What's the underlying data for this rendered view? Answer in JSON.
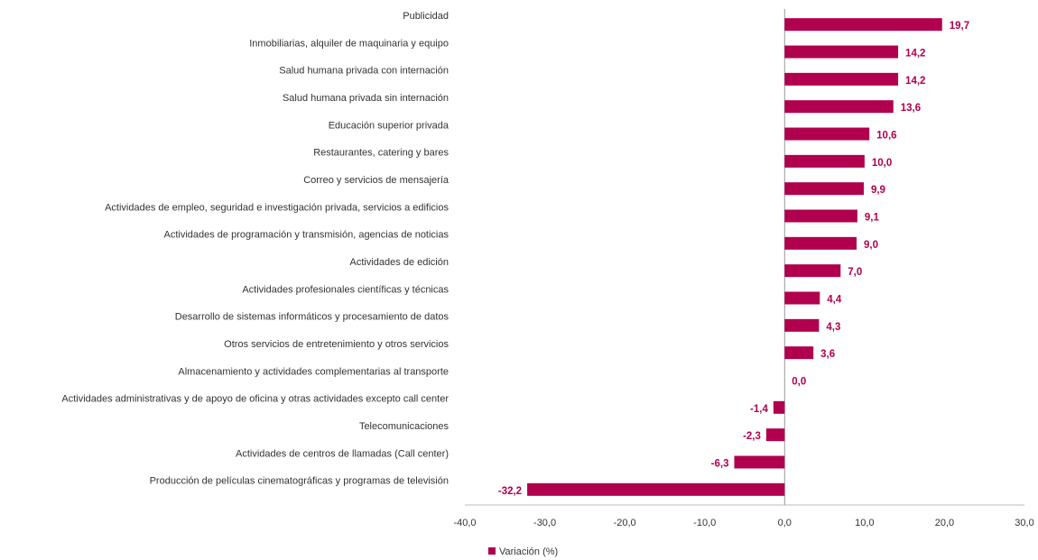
{
  "chart_data": {
    "type": "barh",
    "categories": [
      "Publicidad",
      "Inmobiliarias, alquiler de maquinaria y equipo",
      "Salud humana privada con internación",
      "Salud humana privada sin internación",
      "Educación superior privada",
      "Restaurantes, catering y bares",
      "Correo y servicios de mensajería",
      "Actividades de empleo, seguridad e investigación privada, servicios a edificios",
      "Actividades de programación y transmisión,  agencias de noticias",
      "Actividades de edición",
      "Actividades profesionales científicas y técnicas",
      "Desarrollo de sistemas informáticos y procesamiento de datos",
      "Otros servicios de entretenimiento y otros servicios",
      "Almacenamiento y actividades complementarias al transporte",
      "Actividades administrativas y de apoyo de oficina y otras actividades excepto call center",
      "Telecomunicaciones",
      "Actividades de centros de llamadas (Call center)",
      "Producción de películas cinematográficas y programas de televisión"
    ],
    "series": [
      {
        "name": "Variación (%)",
        "color": "#b0004e",
        "values": [
          19.7,
          14.2,
          14.2,
          13.6,
          10.6,
          10.0,
          9.9,
          9.1,
          9.0,
          7.0,
          4.4,
          4.3,
          3.6,
          0.0,
          -1.4,
          -2.3,
          -6.3,
          -32.2
        ],
        "value_labels": [
          "19,7",
          "14,2",
          "14,2",
          "13,6",
          "10,6",
          "10,0",
          "9,9",
          "9,1",
          "9,0",
          "7,0",
          "4,4",
          "4,3",
          "3,6",
          "0,0",
          "-1,4",
          "-2,3",
          "-6,3",
          "-32,2"
        ]
      }
    ],
    "xlim": [
      -40,
      30
    ],
    "xticks": [
      {
        "value": -40,
        "label": "-40,0"
      },
      {
        "value": -30,
        "label": "-30,0"
      },
      {
        "value": -20,
        "label": "-20,0"
      },
      {
        "value": -10,
        "label": "-10,0"
      },
      {
        "value": 0,
        "label": "0,0"
      },
      {
        "value": 10,
        "label": "10,0"
      },
      {
        "value": 20,
        "label": "20,0"
      },
      {
        "value": 30,
        "label": "30,0"
      }
    ],
    "grid": false,
    "legend": "bottom"
  }
}
